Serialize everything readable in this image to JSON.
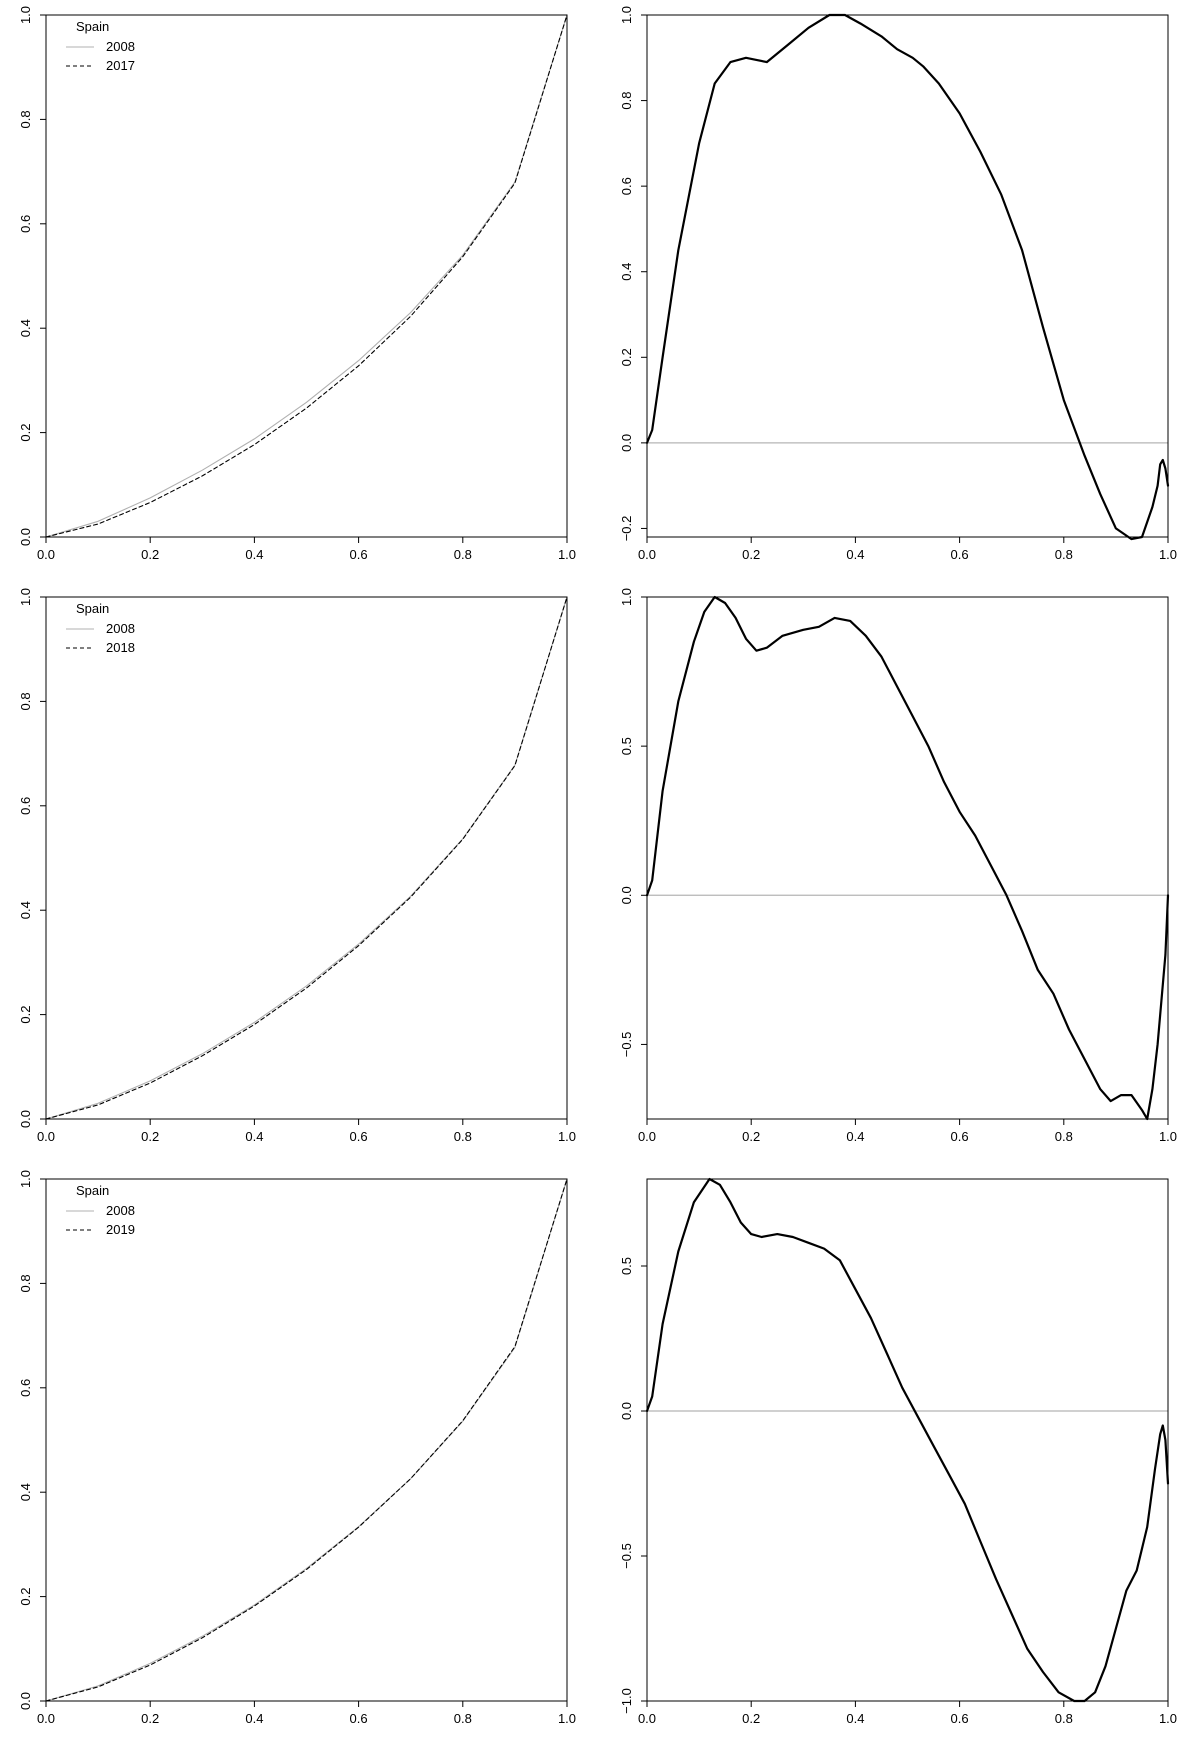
{
  "figure": {
    "panels": 6,
    "layout": "3 rows x 2 columns"
  },
  "chart_data": [
    {
      "type": "line",
      "position": "row1-left",
      "xlim": [
        0,
        1
      ],
      "ylim": [
        0,
        1
      ],
      "xticks": [
        "0.0",
        "0.2",
        "0.4",
        "0.6",
        "0.8",
        "1.0"
      ],
      "yticks": [
        "0.0",
        "0.2",
        "0.4",
        "0.6",
        "0.8",
        "1.0"
      ],
      "legend": {
        "title": "Spain",
        "placement": "top-left",
        "entries": [
          "2008",
          "2017"
        ]
      },
      "series": [
        {
          "name": "2008",
          "style": "solid",
          "color": "#b0b0b0",
          "x": [
            0,
            0.1,
            0.2,
            0.3,
            0.4,
            0.5,
            0.6,
            0.7,
            0.8,
            0.9,
            1.0
          ],
          "values": [
            0,
            0.03,
            0.075,
            0.128,
            0.188,
            0.258,
            0.338,
            0.43,
            0.54,
            0.68,
            1.0
          ]
        },
        {
          "name": "2017",
          "style": "dashed",
          "color": "#000000",
          "x": [
            0,
            0.1,
            0.2,
            0.3,
            0.4,
            0.5,
            0.6,
            0.7,
            0.8,
            0.9,
            1.0
          ],
          "values": [
            0,
            0.025,
            0.066,
            0.117,
            0.177,
            0.247,
            0.328,
            0.423,
            0.537,
            0.678,
            1.0
          ]
        }
      ]
    },
    {
      "type": "line",
      "position": "row1-right",
      "xlim": [
        0,
        1
      ],
      "ylim": [
        -0.22,
        1.0
      ],
      "xticks": [
        "0.0",
        "0.2",
        "0.4",
        "0.6",
        "0.8",
        "1.0"
      ],
      "yticks": [
        "−0.2",
        "0.0",
        "0.2",
        "0.4",
        "0.6",
        "0.8",
        "1.0"
      ],
      "ytick_values": [
        -0.2,
        0,
        0.2,
        0.4,
        0.6,
        0.8,
        1.0
      ],
      "reference_line": 0,
      "series": [
        {
          "color": "#000000",
          "x": [
            0,
            0.01,
            0.03,
            0.06,
            0.1,
            0.13,
            0.16,
            0.19,
            0.21,
            0.23,
            0.27,
            0.31,
            0.35,
            0.38,
            0.41,
            0.45,
            0.48,
            0.51,
            0.53,
            0.56,
            0.6,
            0.64,
            0.68,
            0.72,
            0.76,
            0.8,
            0.84,
            0.87,
            0.9,
            0.93,
            0.95,
            0.97,
            0.98,
            0.985,
            0.99,
            0.995,
            1.0
          ],
          "values": [
            0,
            0.03,
            0.2,
            0.45,
            0.7,
            0.84,
            0.89,
            0.9,
            0.895,
            0.89,
            0.93,
            0.97,
            1.0,
            1.0,
            0.98,
            0.95,
            0.92,
            0.9,
            0.88,
            0.84,
            0.77,
            0.68,
            0.58,
            0.45,
            0.27,
            0.1,
            -0.03,
            -0.12,
            -0.2,
            -0.225,
            -0.22,
            -0.15,
            -0.1,
            -0.05,
            -0.04,
            -0.06,
            -0.1
          ]
        }
      ]
    },
    {
      "type": "line",
      "position": "row2-left",
      "xlim": [
        0,
        1
      ],
      "ylim": [
        0,
        1
      ],
      "xticks": [
        "0.0",
        "0.2",
        "0.4",
        "0.6",
        "0.8",
        "1.0"
      ],
      "yticks": [
        "0.0",
        "0.2",
        "0.4",
        "0.6",
        "0.8",
        "1.0"
      ],
      "legend": {
        "title": "Spain",
        "placement": "top-left",
        "entries": [
          "2008",
          "2018"
        ]
      },
      "series": [
        {
          "name": "2008",
          "style": "solid",
          "color": "#b0b0b0",
          "x": [
            0,
            0.1,
            0.2,
            0.3,
            0.4,
            0.5,
            0.6,
            0.7,
            0.8,
            0.9,
            1.0
          ],
          "values": [
            0,
            0.03,
            0.073,
            0.125,
            0.185,
            0.255,
            0.335,
            0.427,
            0.537,
            0.678,
            1.0
          ]
        },
        {
          "name": "2018",
          "style": "dashed",
          "color": "#000000",
          "x": [
            0,
            0.1,
            0.2,
            0.3,
            0.4,
            0.5,
            0.6,
            0.7,
            0.8,
            0.9,
            1.0
          ],
          "values": [
            0,
            0.027,
            0.069,
            0.121,
            0.181,
            0.251,
            0.332,
            0.425,
            0.536,
            0.677,
            1.0
          ]
        }
      ]
    },
    {
      "type": "line",
      "position": "row2-right",
      "xlim": [
        0,
        1
      ],
      "ylim": [
        -0.75,
        1.0
      ],
      "xticks": [
        "0.0",
        "0.2",
        "0.4",
        "0.6",
        "0.8",
        "1.0"
      ],
      "yticks": [
        "−0.5",
        "0.0",
        "0.5",
        "1.0"
      ],
      "ytick_values": [
        -0.5,
        0,
        0.5,
        1.0
      ],
      "reference_line": 0,
      "series": [
        {
          "color": "#000000",
          "x": [
            0,
            0.01,
            0.03,
            0.06,
            0.09,
            0.11,
            0.13,
            0.15,
            0.17,
            0.19,
            0.21,
            0.23,
            0.26,
            0.3,
            0.33,
            0.36,
            0.39,
            0.42,
            0.45,
            0.48,
            0.51,
            0.54,
            0.57,
            0.6,
            0.63,
            0.66,
            0.69,
            0.72,
            0.75,
            0.78,
            0.81,
            0.84,
            0.87,
            0.89,
            0.91,
            0.93,
            0.95,
            0.96,
            0.97,
            0.98,
            0.99,
            0.995,
            1.0
          ],
          "values": [
            0,
            0.05,
            0.35,
            0.65,
            0.85,
            0.95,
            1.0,
            0.98,
            0.93,
            0.86,
            0.82,
            0.83,
            0.87,
            0.89,
            0.9,
            0.93,
            0.92,
            0.87,
            0.8,
            0.7,
            0.6,
            0.5,
            0.38,
            0.28,
            0.2,
            0.1,
            0.0,
            -0.12,
            -0.25,
            -0.33,
            -0.45,
            -0.55,
            -0.65,
            -0.69,
            -0.67,
            -0.67,
            -0.72,
            -0.75,
            -0.65,
            -0.5,
            -0.3,
            -0.2,
            0.0
          ]
        }
      ]
    },
    {
      "type": "line",
      "position": "row3-left",
      "xlim": [
        0,
        1
      ],
      "ylim": [
        0,
        1
      ],
      "xticks": [
        "0.0",
        "0.2",
        "0.4",
        "0.6",
        "0.8",
        "1.0"
      ],
      "yticks": [
        "0.0",
        "0.2",
        "0.4",
        "0.6",
        "0.8",
        "1.0"
      ],
      "legend": {
        "title": "Spain",
        "placement": "top-left",
        "entries": [
          "2008",
          "2019"
        ]
      },
      "series": [
        {
          "name": "2008",
          "style": "solid",
          "color": "#b0b0b0",
          "x": [
            0,
            0.1,
            0.2,
            0.3,
            0.4,
            0.5,
            0.6,
            0.7,
            0.8,
            0.9,
            1.0
          ],
          "values": [
            0,
            0.029,
            0.072,
            0.124,
            0.184,
            0.254,
            0.334,
            0.426,
            0.536,
            0.677,
            1.0
          ]
        },
        {
          "name": "2019",
          "style": "dashed",
          "color": "#000000",
          "x": [
            0,
            0.1,
            0.2,
            0.3,
            0.4,
            0.5,
            0.6,
            0.7,
            0.8,
            0.9,
            1.0
          ],
          "values": [
            0,
            0.027,
            0.069,
            0.121,
            0.182,
            0.252,
            0.333,
            0.426,
            0.537,
            0.679,
            1.0
          ]
        }
      ]
    },
    {
      "type": "line",
      "position": "row3-right",
      "xlim": [
        0,
        1
      ],
      "ylim": [
        -1.0,
        0.8
      ],
      "xticks": [
        "0.0",
        "0.2",
        "0.4",
        "0.6",
        "0.8",
        "1.0"
      ],
      "yticks": [
        "−1.0",
        "−0.5",
        "0.0",
        "0.5"
      ],
      "ytick_values": [
        -1.0,
        -0.5,
        0,
        0.5
      ],
      "reference_line": 0,
      "series": [
        {
          "color": "#000000",
          "x": [
            0,
            0.01,
            0.03,
            0.06,
            0.09,
            0.12,
            0.14,
            0.16,
            0.18,
            0.2,
            0.22,
            0.25,
            0.28,
            0.31,
            0.34,
            0.37,
            0.4,
            0.43,
            0.46,
            0.49,
            0.52,
            0.55,
            0.58,
            0.61,
            0.64,
            0.67,
            0.7,
            0.73,
            0.76,
            0.79,
            0.82,
            0.84,
            0.86,
            0.88,
            0.9,
            0.92,
            0.94,
            0.96,
            0.975,
            0.985,
            0.99,
            0.995,
            1.0
          ],
          "values": [
            0,
            0.05,
            0.3,
            0.55,
            0.72,
            0.8,
            0.78,
            0.72,
            0.65,
            0.61,
            0.6,
            0.61,
            0.6,
            0.58,
            0.56,
            0.52,
            0.42,
            0.32,
            0.2,
            0.08,
            -0.02,
            -0.12,
            -0.22,
            -0.32,
            -0.45,
            -0.58,
            -0.7,
            -0.82,
            -0.9,
            -0.97,
            -1.0,
            -1.0,
            -0.97,
            -0.88,
            -0.75,
            -0.62,
            -0.55,
            -0.4,
            -0.2,
            -0.08,
            -0.05,
            -0.1,
            -0.25
          ]
        }
      ]
    }
  ]
}
